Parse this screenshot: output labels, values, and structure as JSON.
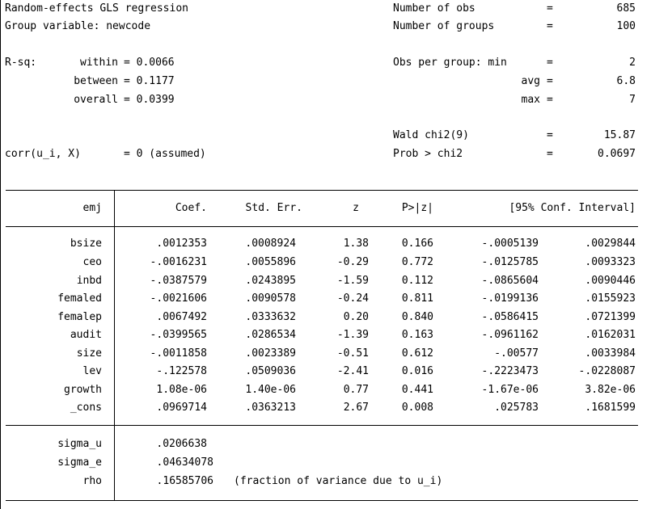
{
  "header": {
    "title": "Random-effects GLS regression",
    "group_var_label": "Group variable:",
    "group_var": "newcode",
    "rsq_label": "R-sq:",
    "rsq": [
      {
        "label": "within",
        "value": "0.0066"
      },
      {
        "label": "between",
        "value": "0.1177"
      },
      {
        "label": "overall",
        "value": "0.0399"
      }
    ],
    "corr_label": "corr(u_i, X)",
    "corr_value": "0 (assumed)",
    "stats": [
      {
        "label": "Number of obs",
        "value": "685"
      },
      {
        "label": "Number of groups",
        "value": "100"
      },
      {
        "label": "Obs per group: min",
        "value": "2"
      },
      {
        "label": "avg",
        "value": "6.8"
      },
      {
        "label": "max",
        "value": "7"
      },
      {
        "label": "Wald chi2(9)",
        "value": "15.87"
      },
      {
        "label": "Prob > chi2",
        "value": "0.0697"
      }
    ]
  },
  "table": {
    "depvar": "emj",
    "columns": [
      "Coef.",
      "Std. Err.",
      "z",
      "P>|z|",
      "[95% Conf. Interval]"
    ],
    "rows": [
      {
        "var": "bsize",
        "coef": ".0012353",
        "se": ".0008924",
        "z": "1.38",
        "p": "0.166",
        "lo": "-.0005139",
        "hi": ".0029844"
      },
      {
        "var": "ceo",
        "coef": "-.0016231",
        "se": ".0055896",
        "z": "-0.29",
        "p": "0.772",
        "lo": "-.0125785",
        "hi": ".0093323"
      },
      {
        "var": "inbd",
        "coef": "-.0387579",
        "se": ".0243895",
        "z": "-1.59",
        "p": "0.112",
        "lo": "-.0865604",
        "hi": ".0090446"
      },
      {
        "var": "femaled",
        "coef": "-.0021606",
        "se": ".0090578",
        "z": "-0.24",
        "p": "0.811",
        "lo": "-.0199136",
        "hi": ".0155923"
      },
      {
        "var": "femalep",
        "coef": ".0067492",
        "se": ".0333632",
        "z": "0.20",
        "p": "0.840",
        "lo": "-.0586415",
        "hi": ".0721399"
      },
      {
        "var": "audit",
        "coef": "-.0399565",
        "se": ".0286534",
        "z": "-1.39",
        "p": "0.163",
        "lo": "-.0961162",
        "hi": ".0162031"
      },
      {
        "var": "size",
        "coef": "-.0011858",
        "se": ".0023389",
        "z": "-0.51",
        "p": "0.612",
        "lo": "-.00577",
        "hi": ".0033984"
      },
      {
        "var": "lev",
        "coef": "-.122578",
        "se": ".0509036",
        "z": "-2.41",
        "p": "0.016",
        "lo": "-.2223473",
        "hi": "-.0228087"
      },
      {
        "var": "growth",
        "coef": "1.08e-06",
        "se": "1.40e-06",
        "z": "0.77",
        "p": "0.441",
        "lo": "-1.67e-06",
        "hi": "3.82e-06"
      },
      {
        "var": "_cons",
        "coef": ".0969714",
        "se": ".0363213",
        "z": "2.67",
        "p": "0.008",
        "lo": ".025783",
        "hi": ".1681599"
      }
    ],
    "variance": [
      {
        "var": "sigma_u",
        "value": ".0206638",
        "note": ""
      },
      {
        "var": "sigma_e",
        "value": ".04634078",
        "note": ""
      },
      {
        "var": "rho",
        "value": ".16585706",
        "note": "(fraction of variance due to u_i)"
      }
    ]
  }
}
